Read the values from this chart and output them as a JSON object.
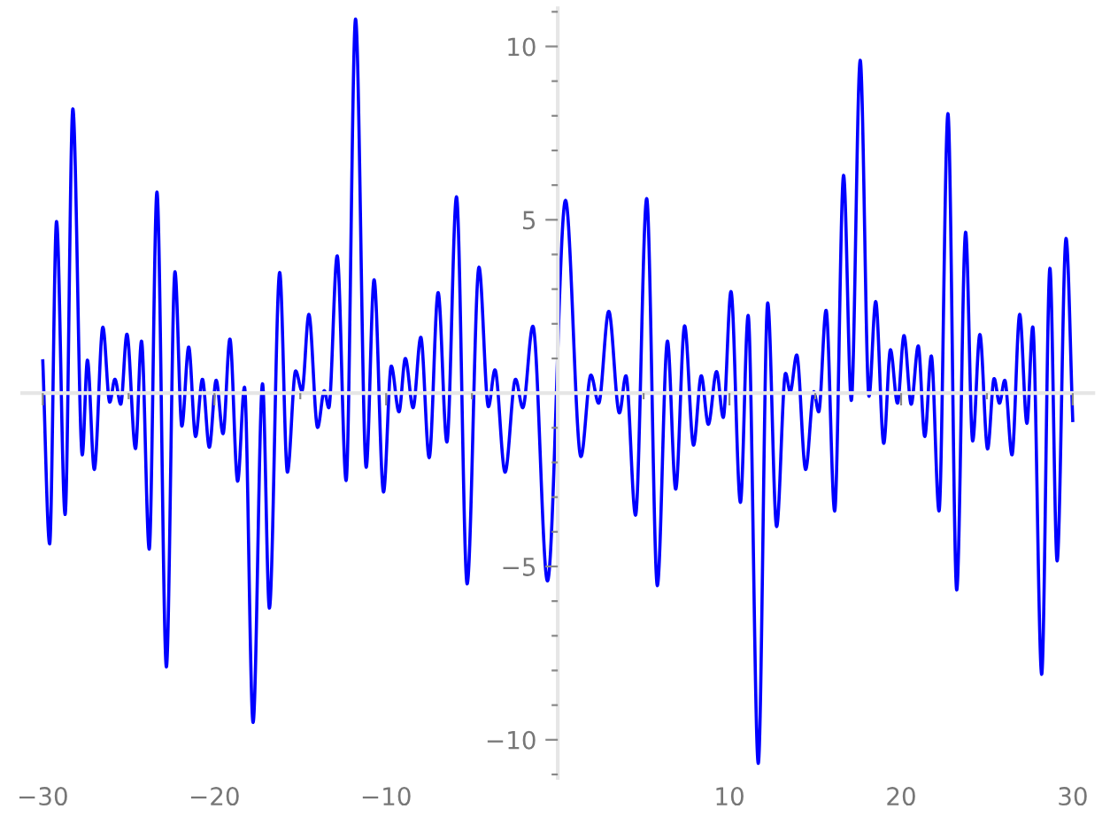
{
  "chart_data": {
    "type": "line",
    "x": [
      -30.0,
      -29.6,
      -29.2,
      -28.7,
      -28.25,
      -27.7,
      -27.4,
      -27.0,
      -26.5,
      -26.1,
      -25.8,
      -25.46,
      -25.1,
      -24.6,
      -24.25,
      -23.8,
      -23.35,
      -22.8,
      -22.3,
      -21.9,
      -21.5,
      -21.1,
      -20.7,
      -20.3,
      -19.9,
      -19.5,
      -19.1,
      -18.65,
      -18.25,
      -17.75,
      -17.2,
      -16.8,
      -16.2,
      -15.75,
      -15.27,
      -14.9,
      -14.5,
      -13.99,
      -13.6,
      -13.34,
      -12.85,
      -12.33,
      -11.78,
      -11.16,
      -10.7,
      -10.15,
      -9.7,
      -9.25,
      -8.88,
      -8.43,
      -7.98,
      -7.49,
      -6.97,
      -6.46,
      -5.9,
      -5.28,
      -4.59,
      -4.04,
      -3.66,
      -3.07,
      -2.46,
      -2.04,
      -1.45,
      -0.6,
      0.45,
      1.35,
      1.93,
      2.38,
      2.97,
      3.59,
      3.97,
      4.53,
      5.18,
      5.8,
      6.39,
      6.87,
      7.39,
      7.91,
      8.36,
      8.77,
      9.25,
      9.64,
      10.09,
      10.64,
      11.09,
      11.68,
      12.23,
      12.75,
      13.27,
      13.54,
      13.92,
      14.44,
      14.92,
      15.2,
      15.63,
      16.13,
      16.65,
      17.1,
      17.62,
      18.13,
      18.52,
      18.99,
      19.38,
      19.79,
      20.17,
      20.59,
      21.0,
      21.38,
      21.76,
      22.21,
      22.73,
      23.24,
      23.76,
      24.17,
      24.59,
      25.04,
      25.42,
      25.73,
      26.04,
      26.46,
      26.91,
      27.33,
      27.67,
      28.19,
      28.67,
      29.09,
      29.61,
      30.0
    ],
    "series": [
      {
        "color": "#0000ff",
        "values": [
          0.93,
          -4.35,
          4.95,
          -3.5,
          8.2,
          -1.78,
          0.95,
          -2.2,
          1.9,
          -0.26,
          0.4,
          -0.32,
          1.7,
          -1.6,
          1.5,
          -4.5,
          5.8,
          -7.9,
          3.5,
          -0.95,
          1.33,
          -1.25,
          0.4,
          -1.56,
          0.37,
          -1.17,
          1.56,
          -2.54,
          0.17,
          -9.5,
          0.27,
          -6.2,
          3.48,
          -2.28,
          0.64,
          0.07,
          2.27,
          -0.99,
          0.07,
          -0.42,
          3.96,
          -2.52,
          10.79,
          -2.14,
          3.27,
          -2.85,
          0.78,
          -0.54,
          1.0,
          -0.42,
          1.61,
          -1.86,
          2.9,
          -1.41,
          5.66,
          -5.5,
          3.63,
          -0.39,
          0.67,
          -2.28,
          0.4,
          -0.42,
          1.93,
          -5.42,
          5.56,
          -1.83,
          0.52,
          -0.29,
          2.36,
          -0.57,
          0.5,
          -3.52,
          5.61,
          -5.55,
          1.5,
          -2.77,
          1.94,
          -1.5,
          0.5,
          -0.9,
          0.62,
          -0.7,
          2.93,
          -3.15,
          2.24,
          -10.68,
          2.6,
          -3.85,
          0.57,
          0.04,
          1.1,
          -2.2,
          0.04,
          -0.54,
          2.39,
          -3.4,
          6.28,
          -0.21,
          9.6,
          -0.09,
          2.64,
          -1.45,
          1.25,
          -0.29,
          1.66,
          -0.32,
          1.36,
          -1.25,
          1.07,
          -3.4,
          8.06,
          -5.68,
          4.64,
          -1.38,
          1.69,
          -1.61,
          0.42,
          -0.29,
          0.37,
          -1.78,
          2.27,
          -0.87,
          1.91,
          -8.11,
          3.6,
          -4.84,
          4.46,
          -0.79
        ]
      }
    ],
    "xlim": [
      -31.2,
      31.2
    ],
    "ylim": [
      -11.1,
      11.1
    ],
    "xticks": [
      -30,
      -20,
      -10,
      10,
      20,
      30,
      {
        "value": -25,
        "label": null
      },
      {
        "value": -15,
        "label": null
      },
      {
        "value": -5,
        "label": null
      },
      {
        "value": 5,
        "label": null
      },
      {
        "value": 15,
        "label": null
      },
      {
        "value": 25,
        "label": null
      }
    ],
    "yticks": [
      -10,
      -5,
      5,
      10,
      {
        "value": -11,
        "label": null
      },
      {
        "value": -9,
        "label": null
      },
      {
        "value": -8,
        "label": null
      },
      {
        "value": -7,
        "label": null
      },
      {
        "value": -6,
        "label": null
      },
      {
        "value": -4,
        "label": null
      },
      {
        "value": -3,
        "label": null
      },
      {
        "value": -2,
        "label": null
      },
      {
        "value": -1,
        "label": null
      },
      {
        "value": 1,
        "label": null
      },
      {
        "value": 2,
        "label": null
      },
      {
        "value": 3,
        "label": null
      },
      {
        "value": 4,
        "label": null
      },
      {
        "value": 6,
        "label": null
      },
      {
        "value": 7,
        "label": null
      },
      {
        "value": 8,
        "label": null
      },
      {
        "value": 9,
        "label": null
      },
      {
        "value": 11,
        "label": null
      }
    ],
    "grid": false,
    "legend": false,
    "marker": "none",
    "line_style": "solid"
  }
}
